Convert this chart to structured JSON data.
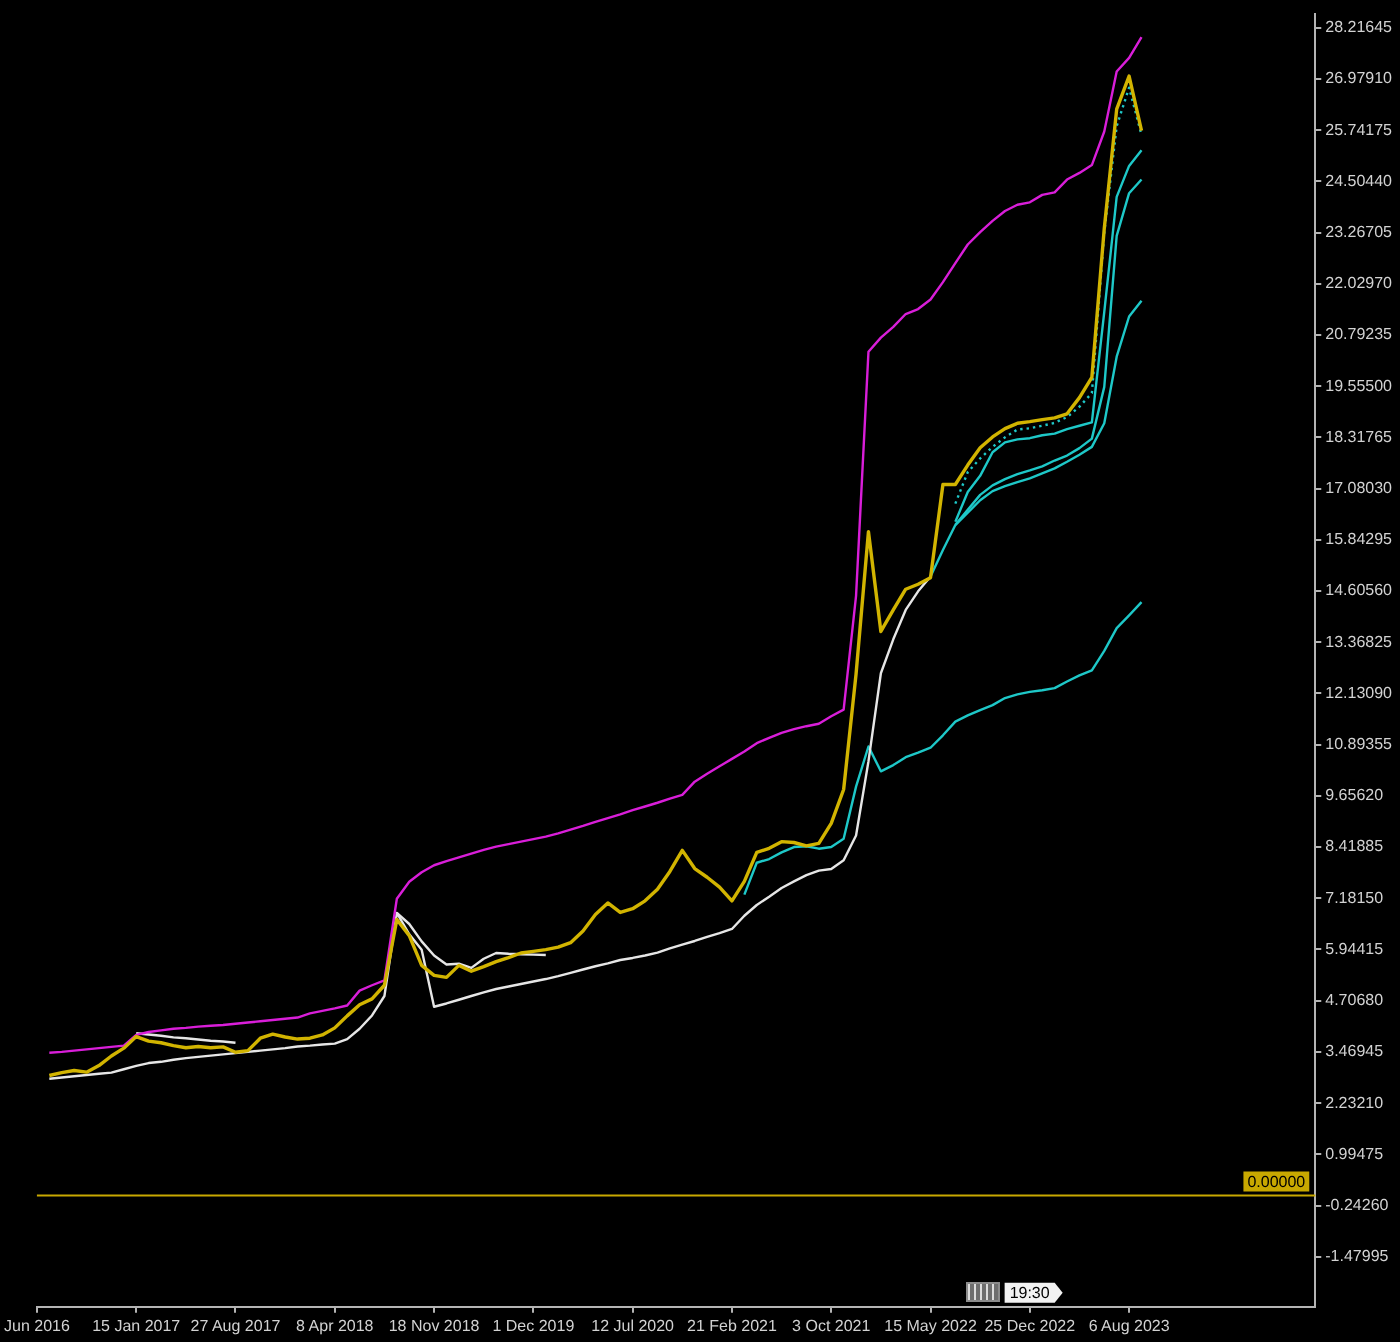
{
  "chart_data": {
    "type": "line",
    "categories": [
      "Jun 2016",
      null,
      null,
      null,
      null,
      null,
      null,
      null,
      "15 Jan 2017",
      null,
      null,
      null,
      null,
      null,
      null,
      null,
      "27 Aug 2017",
      null,
      null,
      null,
      null,
      null,
      null,
      null,
      "8 Apr 2018",
      null,
      null,
      null,
      null,
      null,
      null,
      null,
      "18 Nov 2018",
      null,
      null,
      null,
      null,
      null,
      null,
      null,
      "1 Dec 2019",
      null,
      null,
      null,
      null,
      null,
      null,
      null,
      "12 Jul 2020",
      null,
      null,
      null,
      null,
      null,
      null,
      null,
      "21 Feb 2021",
      null,
      null,
      null,
      null,
      null,
      null,
      null,
      "3 Oct 2021",
      null,
      null,
      null,
      null,
      null,
      null,
      null,
      "15 May 2022",
      null,
      null,
      null,
      null,
      null,
      null,
      null,
      "25 Dec 2022",
      null,
      null,
      null,
      null,
      null,
      null,
      null,
      "6 Aug 2023",
      null,
      null,
      null,
      null,
      null,
      null,
      null,
      null,
      null,
      null,
      null,
      null,
      null,
      null,
      null
    ],
    "series": [
      {
        "color": "#d2b400",
        "values": [
          null,
          2.9,
          2.97,
          3.02,
          2.98,
          3.14,
          3.37,
          3.56,
          3.84,
          3.73,
          3.69,
          3.62,
          3.57,
          3.6,
          3.57,
          3.59,
          3.46,
          3.5,
          3.8,
          3.9,
          3.83,
          3.78,
          3.8,
          3.88,
          4.05,
          4.34,
          4.61,
          4.75,
          5.08,
          6.67,
          6.28,
          5.56,
          5.32,
          5.27,
          5.56,
          5.42,
          5.53,
          5.65,
          5.75,
          5.86,
          5.9,
          5.94,
          6,
          6.11,
          6.39,
          6.79,
          7.07,
          6.84,
          6.93,
          7.12,
          7.4,
          7.83,
          8.34,
          7.9,
          7.69,
          7.45,
          7.12,
          7.59,
          8.29,
          8.39,
          8.55,
          8.53,
          8.45,
          8.51,
          8.99,
          9.81,
          12.6,
          16.04,
          13.63,
          14.15,
          14.65,
          14.77,
          14.93,
          17.18,
          17.18,
          17.65,
          18.07,
          18.33,
          18.53,
          18.66,
          18.7,
          18.75,
          18.79,
          18.89,
          19.28,
          19.77,
          23.37,
          26.25,
          27.05,
          25.73,
          null,
          null,
          null,
          null,
          null,
          null,
          null,
          null,
          null,
          null,
          null,
          null,
          null,
          null
        ]
      },
      {
        "color": "#d91ed9",
        "values": [
          null,
          3.45,
          3.47,
          3.5,
          3.53,
          3.56,
          3.59,
          3.62,
          3.88,
          3.95,
          3.99,
          4.03,
          4.05,
          4.08,
          4.1,
          4.12,
          4.15,
          4.18,
          4.21,
          4.24,
          4.27,
          4.3,
          4.4,
          4.46,
          4.52,
          4.59,
          4.95,
          5.08,
          5.2,
          7.17,
          7.58,
          7.81,
          7.98,
          8.08,
          8.17,
          8.26,
          8.35,
          8.43,
          8.49,
          8.55,
          8.61,
          8.67,
          8.75,
          8.84,
          8.93,
          9.03,
          9.12,
          9.21,
          9.31,
          9.4,
          9.49,
          9.59,
          9.68,
          10,
          10.19,
          10.37,
          10.55,
          10.73,
          10.93,
          11.06,
          11.18,
          11.27,
          11.34,
          11.4,
          11.58,
          11.74,
          14.49,
          20.39,
          20.73,
          20.99,
          21.3,
          21.42,
          21.65,
          22.07,
          22.53,
          22.98,
          23.28,
          23.55,
          23.79,
          23.94,
          24,
          24.18,
          24.24,
          24.55,
          24.71,
          24.9,
          25.71,
          27.16,
          27.49,
          27.99,
          null,
          null,
          null,
          null,
          null,
          null,
          null,
          null,
          null,
          null,
          null,
          null,
          null,
          null
        ]
      },
      {
        "color": "#e6e6e6",
        "values": [
          null,
          2.82,
          2.85,
          2.88,
          2.91,
          2.94,
          2.97,
          3.05,
          3.13,
          3.2,
          3.23,
          3.28,
          3.32,
          3.35,
          3.38,
          3.41,
          3.44,
          3.47,
          3.5,
          3.53,
          3.56,
          3.6,
          3.62,
          3.65,
          3.67,
          3.78,
          4.03,
          4.35,
          4.82,
          6.83,
          6.31,
          5.94,
          4.56,
          4.64,
          4.73,
          4.82,
          4.91,
          4.99,
          5.05,
          5.11,
          5.17,
          5.23,
          5.3,
          5.38,
          5.46,
          5.54,
          5.61,
          5.69,
          5.74,
          5.8,
          5.87,
          5.97,
          6.06,
          6.15,
          6.25,
          6.34,
          6.44,
          6.76,
          7.02,
          7.22,
          7.43,
          7.59,
          7.74,
          7.85,
          7.89,
          8.1,
          8.7,
          10.49,
          12.62,
          13.44,
          14.15,
          14.6,
          14.96,
          null,
          null,
          null,
          null,
          null,
          null,
          null,
          null,
          null,
          null,
          null,
          null,
          null,
          null,
          null,
          null,
          null,
          null,
          null,
          null,
          null,
          null,
          null,
          null,
          null,
          null,
          null,
          null,
          null,
          null,
          null
        ]
      },
      {
        "color": "#e6e6e6",
        "values": [
          null,
          null,
          null,
          null,
          null,
          null,
          null,
          null,
          3.92,
          3.89,
          3.86,
          3.82,
          3.8,
          3.77,
          3.74,
          3.72,
          3.69,
          null,
          null,
          null,
          null,
          null,
          null,
          null,
          null,
          null,
          null,
          null,
          null,
          6.83,
          6.56,
          6.14,
          5.8,
          5.58,
          5.6,
          5.5,
          5.72,
          5.86,
          5.84,
          5.83,
          5.82,
          5.81,
          null,
          null,
          null,
          null,
          null,
          null,
          null,
          null,
          null,
          null,
          null,
          null,
          null,
          null,
          null,
          null,
          null,
          null,
          null,
          null,
          null,
          null,
          null,
          null,
          null,
          null,
          null,
          null,
          null,
          null,
          null,
          null,
          null,
          null,
          null,
          null,
          null,
          null,
          null,
          null,
          null,
          null,
          null,
          null,
          null,
          null,
          null,
          null,
          null,
          null,
          null,
          null,
          null,
          null,
          null,
          null,
          null,
          null,
          null,
          null,
          null,
          null
        ]
      },
      {
        "color": "#1ec8c8",
        "values": [
          null,
          null,
          null,
          null,
          null,
          null,
          null,
          null,
          null,
          null,
          null,
          null,
          null,
          null,
          null,
          null,
          null,
          null,
          null,
          null,
          null,
          null,
          null,
          null,
          null,
          null,
          null,
          null,
          null,
          null,
          null,
          null,
          null,
          null,
          null,
          null,
          null,
          null,
          null,
          null,
          null,
          null,
          null,
          null,
          null,
          null,
          null,
          null,
          null,
          null,
          null,
          null,
          null,
          null,
          null,
          null,
          null,
          7.27,
          8.04,
          8.13,
          8.29,
          8.42,
          8.44,
          8.38,
          8.42,
          8.62,
          9.88,
          10.85,
          10.25,
          10.4,
          10.59,
          10.7,
          10.82,
          11.12,
          11.45,
          11.6,
          11.73,
          11.85,
          12.02,
          12.11,
          12.17,
          12.21,
          12.26,
          12.42,
          12.57,
          12.69,
          13.16,
          13.71,
          14.02,
          14.34,
          null,
          null,
          null,
          null,
          null,
          null,
          null,
          null,
          null,
          null,
          null,
          null,
          null,
          null
        ]
      },
      {
        "color": "#1ec8c8",
        "values": [
          null,
          null,
          null,
          null,
          null,
          null,
          null,
          null,
          null,
          null,
          null,
          null,
          null,
          null,
          null,
          null,
          null,
          null,
          null,
          null,
          null,
          null,
          null,
          null,
          null,
          null,
          null,
          null,
          null,
          null,
          null,
          null,
          null,
          null,
          null,
          null,
          null,
          null,
          null,
          null,
          null,
          null,
          null,
          null,
          null,
          null,
          null,
          null,
          null,
          null,
          null,
          null,
          null,
          null,
          null,
          null,
          null,
          null,
          null,
          null,
          null,
          null,
          null,
          null,
          null,
          null,
          null,
          null,
          null,
          null,
          null,
          null,
          14.96,
          15.6,
          16.2,
          16.5,
          16.8,
          17.02,
          17.14,
          17.24,
          17.33,
          17.45,
          17.57,
          17.73,
          17.9,
          18.09,
          18.66,
          20.27,
          21.24,
          21.62,
          null,
          null,
          null,
          null,
          null,
          null,
          null,
          null,
          null,
          null,
          null,
          null,
          null,
          null
        ]
      },
      {
        "color": "#1ec8c8",
        "values": [
          null,
          null,
          null,
          null,
          null,
          null,
          null,
          null,
          null,
          null,
          null,
          null,
          null,
          null,
          null,
          null,
          null,
          null,
          null,
          null,
          null,
          null,
          null,
          null,
          null,
          null,
          null,
          null,
          null,
          null,
          null,
          null,
          null,
          null,
          null,
          null,
          null,
          null,
          null,
          null,
          null,
          null,
          null,
          null,
          null,
          null,
          null,
          null,
          null,
          null,
          null,
          null,
          null,
          null,
          null,
          null,
          null,
          null,
          null,
          null,
          null,
          null,
          null,
          null,
          null,
          null,
          null,
          null,
          null,
          null,
          null,
          null,
          null,
          null,
          16.21,
          16.57,
          16.93,
          17.16,
          17.31,
          17.43,
          17.52,
          17.62,
          17.76,
          17.88,
          18.06,
          18.29,
          19.54,
          23.19,
          24.22,
          24.55,
          null,
          null,
          null,
          null,
          null,
          null,
          null,
          null,
          null,
          null,
          null,
          null,
          null,
          null
        ]
      },
      {
        "color": "#1ec8c8",
        "values": [
          null,
          null,
          null,
          null,
          null,
          null,
          null,
          null,
          null,
          null,
          null,
          null,
          null,
          null,
          null,
          null,
          null,
          null,
          null,
          null,
          null,
          null,
          null,
          null,
          null,
          null,
          null,
          null,
          null,
          null,
          null,
          null,
          null,
          null,
          null,
          null,
          null,
          null,
          null,
          null,
          null,
          null,
          null,
          null,
          null,
          null,
          null,
          null,
          null,
          null,
          null,
          null,
          null,
          null,
          null,
          null,
          null,
          null,
          null,
          null,
          null,
          null,
          null,
          null,
          null,
          null,
          null,
          null,
          null,
          null,
          null,
          null,
          null,
          null,
          16.28,
          17,
          17.39,
          17.96,
          18.2,
          18.27,
          18.3,
          18.37,
          18.41,
          18.52,
          18.6,
          18.68,
          21.35,
          24.13,
          24.88,
          25.26,
          null,
          null,
          null,
          null,
          null,
          null,
          null,
          null,
          null,
          null,
          null,
          null,
          null,
          null
        ]
      },
      {
        "color": "#1ec8c8",
        "line_style": "dotted",
        "values": [
          null,
          null,
          null,
          null,
          null,
          null,
          null,
          null,
          null,
          null,
          null,
          null,
          null,
          null,
          null,
          null,
          null,
          null,
          null,
          null,
          null,
          null,
          null,
          null,
          null,
          null,
          null,
          null,
          null,
          null,
          null,
          null,
          null,
          null,
          null,
          null,
          null,
          null,
          null,
          null,
          null,
          null,
          null,
          null,
          null,
          null,
          null,
          null,
          null,
          null,
          null,
          null,
          null,
          null,
          null,
          null,
          null,
          null,
          null,
          null,
          null,
          null,
          null,
          null,
          null,
          null,
          null,
          null,
          null,
          null,
          null,
          null,
          null,
          null,
          16.72,
          17.48,
          17.81,
          18.09,
          18.32,
          18.51,
          18.54,
          18.6,
          18.67,
          18.81,
          19.06,
          19.39,
          23.27,
          25.84,
          26.77,
          25.63,
          null,
          null,
          null,
          null,
          null,
          null,
          null,
          null,
          null,
          null,
          null,
          null,
          null,
          null
        ]
      }
    ],
    "ylim": [
      -2.69,
      28.56
    ],
    "yticks": [
      -1.47995,
      {
        "value": -0.2426,
        "label": "-0.24260"
      },
      0.99475,
      {
        "value": 2.2321,
        "label": "2.23210"
      },
      3.46945,
      {
        "value": 4.7068,
        "label": "4.70680"
      },
      5.94415,
      {
        "value": 7.1815,
        "label": "7.18150"
      },
      8.41885,
      {
        "value": 9.6562,
        "label": "9.65620"
      },
      10.89355,
      {
        "value": 12.1309,
        "label": "12.13090"
      },
      13.36825,
      {
        "value": 14.6056,
        "label": "14.60560"
      },
      15.84295,
      {
        "value": 17.0803,
        "label": "17.08030"
      },
      18.31765,
      {
        "value": 19.555,
        "label": "19.55500"
      },
      20.79235,
      {
        "value": 22.0297,
        "label": "22.02970"
      },
      23.26705,
      {
        "value": 24.5044,
        "label": "24.50440"
      },
      25.74175,
      {
        "value": 26.9791,
        "label": "26.97910"
      },
      28.21645
    ],
    "ref_lines": [
      {
        "axis": "y",
        "value": 0,
        "label": "0.00000",
        "color": "#c8a800"
      }
    ],
    "annotations": [
      "19:30"
    ]
  }
}
